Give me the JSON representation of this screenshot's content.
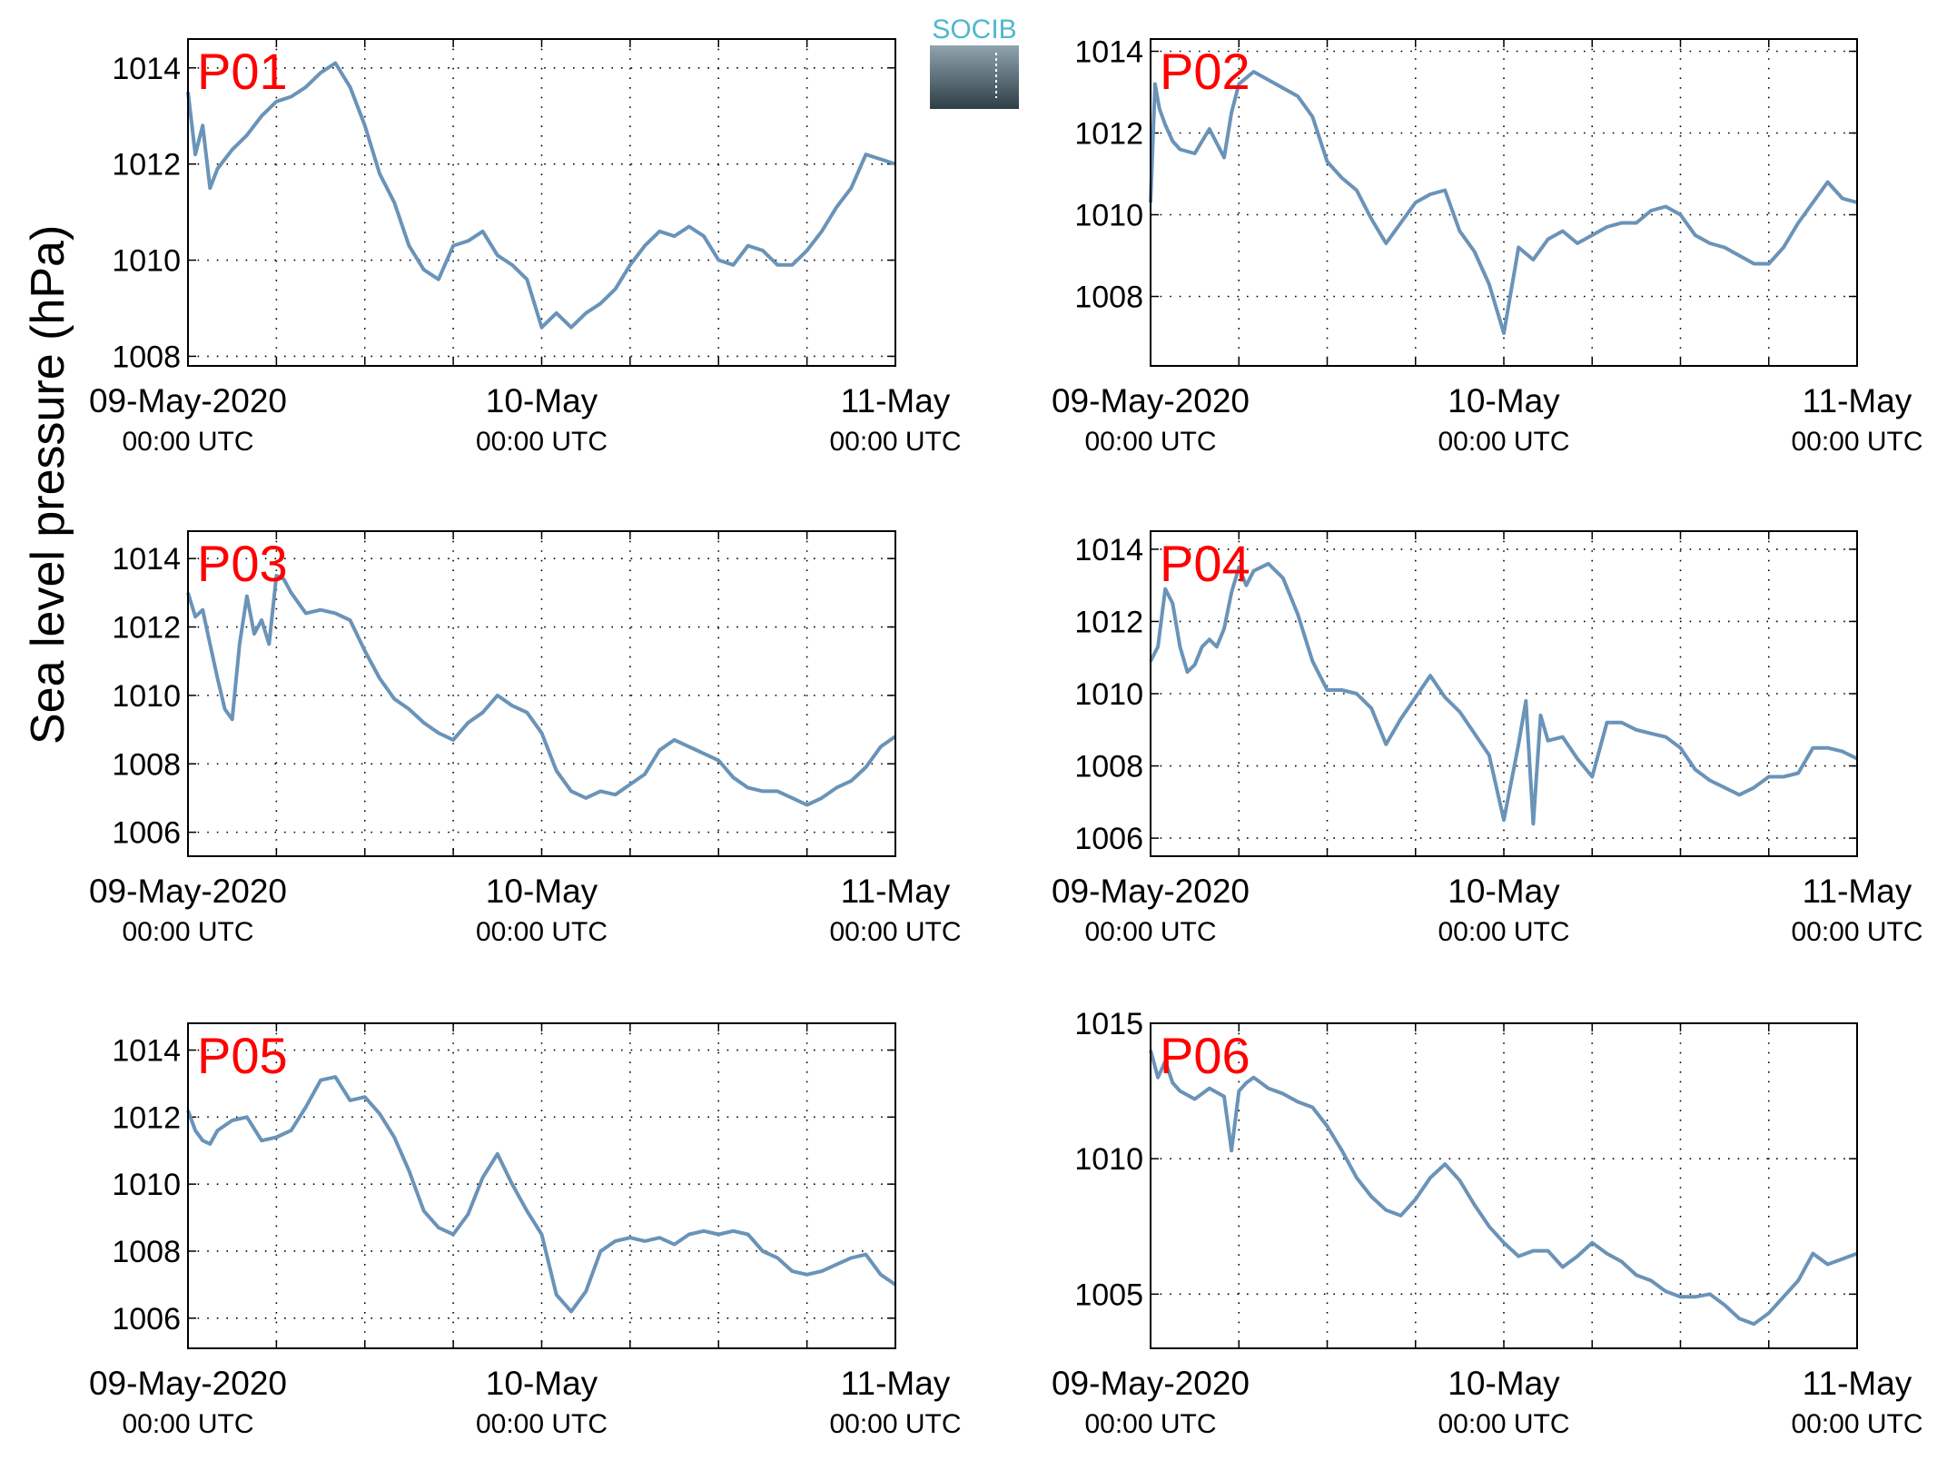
{
  "figure": {
    "ylabel": "Sea level pressure (hPa)",
    "logo_text": "SOCIB",
    "line_color": "#6a93b8",
    "label_color": "#ff0000",
    "grid": "dotted",
    "x_tick_labels": [
      {
        "date": "09-May-2020",
        "time": "00:00 UTC"
      },
      {
        "date": "10-May",
        "time": "00:00 UTC"
      },
      {
        "date": "11-May",
        "time": "00:00 UTC"
      }
    ]
  },
  "chart_data": [
    {
      "type": "line",
      "name": "P01",
      "x_unit": "hours since 09-May-2020 00:00 UTC",
      "xlim": [
        0,
        48
      ],
      "ylim": [
        1007.8,
        1014.6
      ],
      "yticks": [
        1008,
        1010,
        1012,
        1014
      ],
      "x": [
        0,
        0.5,
        1,
        1.5,
        2,
        3,
        4,
        5,
        6,
        7,
        8,
        9,
        10,
        11,
        12,
        13,
        14,
        15,
        16,
        17,
        18,
        19,
        20,
        21,
        22,
        23,
        24,
        25,
        26,
        27,
        28,
        29,
        30,
        31,
        32,
        33,
        34,
        35,
        36,
        37,
        38,
        39,
        40,
        41,
        42,
        43,
        44,
        45,
        46,
        47,
        48
      ],
      "y": [
        1013.5,
        1012.2,
        1012.8,
        1011.5,
        1011.9,
        1012.3,
        1012.6,
        1013.0,
        1013.3,
        1013.4,
        1013.6,
        1013.9,
        1014.1,
        1013.6,
        1012.8,
        1011.8,
        1011.2,
        1010.3,
        1009.8,
        1009.6,
        1010.3,
        1010.4,
        1010.6,
        1010.1,
        1009.9,
        1009.6,
        1008.6,
        1008.9,
        1008.6,
        1008.9,
        1009.1,
        1009.4,
        1009.9,
        1010.3,
        1010.6,
        1010.5,
        1010.7,
        1010.5,
        1010.0,
        1009.9,
        1010.3,
        1010.2,
        1009.9,
        1009.9,
        1010.2,
        1010.6,
        1011.1,
        1011.5,
        1012.2,
        1012.1,
        1012.0
      ]
    },
    {
      "type": "line",
      "name": "P02",
      "x_unit": "hours since 09-May-2020 00:00 UTC",
      "xlim": [
        0,
        48
      ],
      "ylim": [
        1006.3,
        1014.3
      ],
      "yticks": [
        1008,
        1010,
        1012,
        1014
      ],
      "x": [
        0,
        0.3,
        0.6,
        1,
        1.5,
        2,
        3,
        4,
        5,
        5.5,
        6,
        7,
        8,
        9,
        10,
        11,
        12,
        13,
        14,
        15,
        16,
        17,
        18,
        19,
        20,
        21,
        22,
        23,
        24,
        25,
        26,
        27,
        28,
        29,
        30,
        31,
        32,
        33,
        34,
        35,
        36,
        37,
        38,
        39,
        40,
        41,
        42,
        43,
        44,
        45,
        46,
        47,
        48
      ],
      "y": [
        1010.3,
        1013.2,
        1012.6,
        1012.2,
        1011.8,
        1011.6,
        1011.5,
        1012.1,
        1011.4,
        1012.5,
        1013.2,
        1013.5,
        1013.3,
        1013.1,
        1012.9,
        1012.4,
        1011.3,
        1010.9,
        1010.6,
        1009.9,
        1009.3,
        1009.8,
        1010.3,
        1010.5,
        1010.6,
        1009.6,
        1009.1,
        1008.3,
        1007.1,
        1009.2,
        1008.9,
        1009.4,
        1009.6,
        1009.3,
        1009.5,
        1009.7,
        1009.8,
        1009.8,
        1010.1,
        1010.2,
        1010.0,
        1009.5,
        1009.3,
        1009.2,
        1009.0,
        1008.8,
        1008.8,
        1009.2,
        1009.8,
        1010.3,
        1010.8,
        1010.4,
        1010.3
      ]
    },
    {
      "type": "line",
      "name": "P03",
      "x_unit": "hours since 09-May-2020 00:00 UTC",
      "xlim": [
        0,
        48
      ],
      "ylim": [
        1005.3,
        1014.8
      ],
      "yticks": [
        1006,
        1008,
        1010,
        1012,
        1014
      ],
      "x": [
        0,
        0.5,
        1,
        1.5,
        2,
        2.5,
        3,
        3.5,
        4,
        4.5,
        5,
        5.5,
        6,
        6.5,
        7,
        8,
        9,
        10,
        11,
        12,
        13,
        14,
        15,
        16,
        17,
        18,
        19,
        20,
        21,
        22,
        23,
        24,
        25,
        26,
        27,
        28,
        29,
        30,
        31,
        32,
        33,
        34,
        35,
        36,
        37,
        38,
        39,
        40,
        41,
        42,
        43,
        44,
        45,
        46,
        47,
        48
      ],
      "y": [
        1013.0,
        1012.3,
        1012.5,
        1011.5,
        1010.5,
        1009.6,
        1009.3,
        1011.5,
        1012.9,
        1011.8,
        1012.2,
        1011.5,
        1013.5,
        1013.4,
        1013.0,
        1012.4,
        1012.5,
        1012.4,
        1012.2,
        1011.3,
        1010.5,
        1009.9,
        1009.6,
        1009.2,
        1008.9,
        1008.7,
        1009.2,
        1009.5,
        1010.0,
        1009.7,
        1009.5,
        1008.9,
        1007.8,
        1007.2,
        1007.0,
        1007.2,
        1007.1,
        1007.4,
        1007.7,
        1008.4,
        1008.7,
        1008.5,
        1008.3,
        1008.1,
        1007.6,
        1007.3,
        1007.2,
        1007.2,
        1007.0,
        1006.8,
        1007.0,
        1007.3,
        1007.5,
        1007.9,
        1008.5,
        1008.8
      ]
    },
    {
      "type": "line",
      "name": "P04",
      "x_unit": "hours since 09-May-2020 00:00 UTC",
      "xlim": [
        0,
        48
      ],
      "ylim": [
        1005.5,
        1014.5
      ],
      "yticks": [
        1006,
        1008,
        1010,
        1012,
        1014
      ],
      "x": [
        0,
        0.5,
        1,
        1.5,
        2,
        2.5,
        3,
        3.5,
        4,
        4.5,
        5,
        5.5,
        6,
        6.5,
        7,
        8,
        9,
        10,
        11,
        12,
        13,
        14,
        15,
        16,
        17,
        18,
        19,
        20,
        21,
        22,
        23,
        24,
        25,
        25.5,
        26,
        26.5,
        27,
        28,
        29,
        30,
        31,
        32,
        33,
        34,
        35,
        36,
        37,
        38,
        39,
        40,
        41,
        42,
        43,
        44,
        45,
        46,
        47,
        48
      ],
      "y": [
        1010.9,
        1011.3,
        1012.9,
        1012.5,
        1011.3,
        1010.6,
        1010.8,
        1011.3,
        1011.5,
        1011.3,
        1011.8,
        1012.8,
        1013.5,
        1013.0,
        1013.4,
        1013.6,
        1013.2,
        1012.2,
        1010.9,
        1010.1,
        1010.1,
        1010.0,
        1009.6,
        1008.6,
        1009.3,
        1009.9,
        1010.5,
        1009.9,
        1009.5,
        1008.9,
        1008.3,
        1006.5,
        1008.6,
        1009.8,
        1006.4,
        1009.4,
        1008.7,
        1008.8,
        1008.2,
        1007.7,
        1009.2,
        1009.2,
        1009.0,
        1008.9,
        1008.8,
        1008.5,
        1007.9,
        1007.6,
        1007.4,
        1007.2,
        1007.4,
        1007.7,
        1007.7,
        1007.8,
        1008.5,
        1008.5,
        1008.4,
        1008.2
      ]
    },
    {
      "type": "line",
      "name": "P05",
      "x_unit": "hours since 09-May-2020 00:00 UTC",
      "xlim": [
        0,
        48
      ],
      "ylim": [
        1005.1,
        1014.8
      ],
      "yticks": [
        1006,
        1008,
        1010,
        1012,
        1014
      ],
      "x": [
        0,
        0.5,
        1,
        1.5,
        2,
        3,
        4,
        5,
        6,
        7,
        8,
        9,
        10,
        11,
        12,
        13,
        14,
        15,
        16,
        17,
        18,
        19,
        20,
        21,
        22,
        23,
        24,
        25,
        26,
        27,
        28,
        29,
        30,
        31,
        32,
        33,
        34,
        35,
        36,
        37,
        38,
        39,
        40,
        41,
        42,
        43,
        44,
        45,
        46,
        47,
        48
      ],
      "y": [
        1012.2,
        1011.6,
        1011.3,
        1011.2,
        1011.6,
        1011.9,
        1012.0,
        1011.3,
        1011.4,
        1011.6,
        1012.3,
        1013.1,
        1013.2,
        1012.5,
        1012.6,
        1012.1,
        1011.4,
        1010.4,
        1009.2,
        1008.7,
        1008.5,
        1009.1,
        1010.2,
        1010.9,
        1010.0,
        1009.2,
        1008.5,
        1006.7,
        1006.2,
        1006.8,
        1008.0,
        1008.3,
        1008.4,
        1008.3,
        1008.4,
        1008.2,
        1008.5,
        1008.6,
        1008.5,
        1008.6,
        1008.5,
        1008.0,
        1007.8,
        1007.4,
        1007.3,
        1007.4,
        1007.6,
        1007.8,
        1007.9,
        1007.3,
        1007.0
      ]
    },
    {
      "type": "line",
      "name": "P06",
      "x_unit": "hours since 09-May-2020 00:00 UTC",
      "xlim": [
        0,
        48
      ],
      "ylim": [
        1003,
        1015
      ],
      "yticks": [
        1005,
        1010,
        1015
      ],
      "x": [
        0,
        0.5,
        1,
        1.5,
        2,
        3,
        4,
        5,
        5.5,
        6,
        6.5,
        7,
        8,
        9,
        10,
        11,
        12,
        13,
        14,
        15,
        16,
        17,
        18,
        19,
        20,
        21,
        22,
        23,
        24,
        25,
        26,
        27,
        28,
        29,
        30,
        31,
        32,
        33,
        34,
        35,
        36,
        37,
        38,
        39,
        40,
        41,
        42,
        43,
        44,
        45,
        46,
        47,
        48
      ],
      "y": [
        1014.0,
        1013.0,
        1013.6,
        1012.8,
        1012.5,
        1012.2,
        1012.6,
        1012.3,
        1010.3,
        1012.5,
        1012.8,
        1013.0,
        1012.6,
        1012.4,
        1012.1,
        1011.9,
        1011.2,
        1010.3,
        1009.3,
        1008.6,
        1008.1,
        1007.9,
        1008.5,
        1009.3,
        1009.8,
        1009.2,
        1008.3,
        1007.5,
        1006.9,
        1006.4,
        1006.6,
        1006.6,
        1006.0,
        1006.4,
        1006.9,
        1006.5,
        1006.2,
        1005.7,
        1005.5,
        1005.1,
        1004.9,
        1004.9,
        1005.0,
        1004.6,
        1004.1,
        1003.9,
        1004.3,
        1004.9,
        1005.5,
        1006.5,
        1006.1,
        1006.3,
        1006.5
      ]
    }
  ]
}
